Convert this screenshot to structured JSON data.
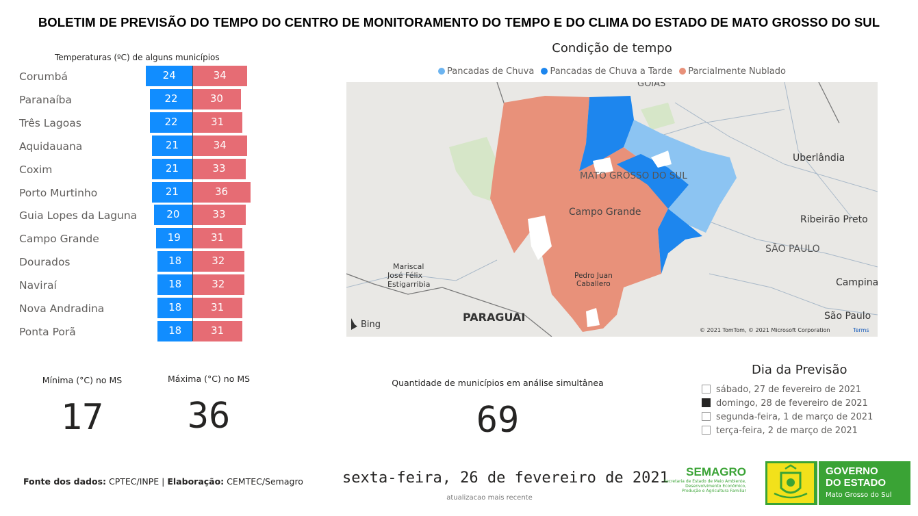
{
  "header": {
    "title": "BOLETIM DE PREVISÃO DO TEMPO DO CENTRO DE MONITORAMENTO DO TEMPO E DO CLIMA DO ESTADO DE MATO GROSSO DO SUL"
  },
  "temperatures": {
    "title": "Temperaturas (ºC) de alguns municípios",
    "colors": {
      "min": "#118dff",
      "max": "#e66c74"
    },
    "rows": [
      {
        "city": "Corumbá",
        "min": 24,
        "max": 34
      },
      {
        "city": "Paranaíba",
        "min": 22,
        "max": 30
      },
      {
        "city": "Três Lagoas",
        "min": 22,
        "max": 31
      },
      {
        "city": "Aquidauana",
        "min": 21,
        "max": 34
      },
      {
        "city": "Coxim",
        "min": 21,
        "max": 33
      },
      {
        "city": "Porto Murtinho",
        "min": 21,
        "max": 36
      },
      {
        "city": "Guia Lopes da Laguna",
        "min": 20,
        "max": 33
      },
      {
        "city": "Campo Grande",
        "min": 19,
        "max": 31
      },
      {
        "city": "Dourados",
        "min": 18,
        "max": 32
      },
      {
        "city": "Naviraí",
        "min": 18,
        "max": 32
      },
      {
        "city": "Nova Andradina",
        "min": 18,
        "max": 31
      },
      {
        "city": "Ponta Porã",
        "min": 18,
        "max": 31
      }
    ]
  },
  "map": {
    "title": "Condição de tempo",
    "legend": [
      {
        "label": "Pancadas de Chuva",
        "color": "#6cb4f0"
      },
      {
        "label": "Pancadas de Chuva a Tarde",
        "color": "#1d86ee"
      },
      {
        "label": "Parcialmente Nublado",
        "color": "#e8917a"
      }
    ],
    "labels": {
      "goias": "GOIÁS",
      "ms": "MATO GROSSO DO SUL",
      "campo_grande": "Campo Grande",
      "uberlandia": "Uberlândia",
      "ribeirao": "Ribeirão Preto",
      "sao_paulo_state": "SÃO PAULO",
      "campinas": "Campinas",
      "sao_paulo_city": "São Paulo",
      "mariscal_1": "Mariscal",
      "mariscal_2": "José Félix",
      "mariscal_3": "Estigarribia",
      "pedro_1": "Pedro Juan",
      "pedro_2": "Caballero",
      "paraguai": "PARAGUAI",
      "bing": "Bing",
      "copyright": "© 2021 TomTom, © 2021 Microsoft Corporation",
      "terms": "Terms"
    }
  },
  "kpis": {
    "min_label": "Mínima (°C) no MS",
    "min_value": "17",
    "max_label": "Máxima (°C) no MS",
    "max_value": "36",
    "count_label": "Quantidade de municípios em análise simultânea",
    "count_value": "69"
  },
  "forecast_day": {
    "title": "Dia da Previsão",
    "options": [
      {
        "label": "sábado, 27 de fevereiro de 2021",
        "checked": false
      },
      {
        "label": "domingo, 28 de fevereiro de 2021",
        "checked": true
      },
      {
        "label": "segunda-feira, 1 de março de 2021",
        "checked": false
      },
      {
        "label": "terça-feira, 2 de março de 2021",
        "checked": false
      }
    ]
  },
  "footer": {
    "fonte_label": "Fonte dos dados:",
    "fonte_value": " CPTEC/INPE | ",
    "elab_label": "Elaboração:",
    "elab_value": " CEMTEC/Semagro",
    "date": "sexta-feira, 26 de fevereiro de 2021",
    "date_sub": "atualizacao mais recente",
    "semagro_name": "SEMAGRO",
    "semagro_sub1": "Secretaria de Estado de Meio Ambiente,",
    "semagro_sub2": "Desenvolvimento Econômico,",
    "semagro_sub3": "Produção e Agricultura Familiar",
    "gov_line1": "GOVERNO",
    "gov_line2": "DO ESTADO",
    "gov_line3": "Mato Grosso do Sul"
  }
}
